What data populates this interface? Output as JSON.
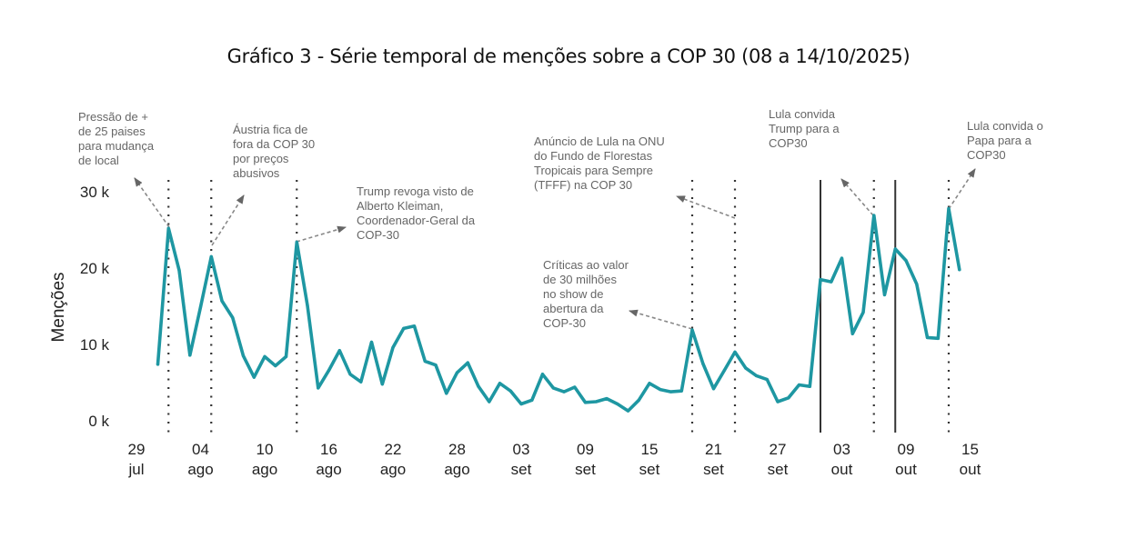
{
  "chart_data": {
    "type": "line",
    "title": "Gráfico 3 - Série temporal de menções sobre a COP 30 (08 a 14/10/2025)",
    "xlabel": "",
    "ylabel": "Menções",
    "ylim": [
      0,
      30000
    ],
    "yticks": [
      {
        "value": 0,
        "label": "0 k"
      },
      {
        "value": 10000,
        "label": "10 k"
      },
      {
        "value": 20000,
        "label": "20 k"
      },
      {
        "value": 30000,
        "label": "30 k"
      }
    ],
    "xstart_label": "29 jul",
    "xticks": [
      {
        "day": 0,
        "line1": "29",
        "line2": "jul"
      },
      {
        "day": 6,
        "line1": "04",
        "line2": "ago"
      },
      {
        "day": 12,
        "line1": "10",
        "line2": "ago"
      },
      {
        "day": 18,
        "line1": "16",
        "line2": "ago"
      },
      {
        "day": 24,
        "line1": "22",
        "line2": "ago"
      },
      {
        "day": 30,
        "line1": "28",
        "line2": "ago"
      },
      {
        "day": 36,
        "line1": "03",
        "line2": "set"
      },
      {
        "day": 42,
        "line1": "09",
        "line2": "set"
      },
      {
        "day": 48,
        "line1": "15",
        "line2": "set"
      },
      {
        "day": 54,
        "line1": "21",
        "line2": "set"
      },
      {
        "day": 60,
        "line1": "27",
        "line2": "set"
      },
      {
        "day": 66,
        "line1": "03",
        "line2": "out"
      },
      {
        "day": 72,
        "line1": "09",
        "line2": "out"
      },
      {
        "day": 78,
        "line1": "15",
        "line2": "out"
      }
    ],
    "grid": false,
    "legend": "none",
    "series": [
      {
        "name": "Menções",
        "color": "#1e97a2",
        "start_day": 2,
        "values": [
          7400,
          25200,
          19700,
          8600,
          14900,
          21500,
          15700,
          13500,
          8500,
          5700,
          8400,
          7200,
          8400,
          23400,
          15100,
          4300,
          6600,
          9200,
          6100,
          5100,
          10300,
          4800,
          9600,
          12100,
          12400,
          7800,
          7300,
          3600,
          6300,
          7600,
          4500,
          2500,
          4900,
          3900,
          2200,
          2700,
          6100,
          4300,
          3800,
          4400,
          2400,
          2500,
          2900,
          2200,
          1300,
          2700,
          4900,
          4100,
          3800,
          3900,
          11900,
          7500,
          4200,
          6600,
          9000,
          6900,
          5900,
          5400,
          2500,
          3000,
          4700,
          4500,
          18500,
          18200,
          21300,
          11400,
          14200,
          26900,
          16500,
          22500,
          21000,
          17900,
          10900,
          10800,
          27800,
          19800
        ]
      }
    ],
    "dotted_markers_days": [
      3,
      7,
      15,
      52,
      56,
      69,
      76
    ],
    "solid_markers_days": [
      64,
      71
    ],
    "annotations": [
      {
        "lines": [
          "Pressão de +",
          "de 25 paises",
          "para mudança",
          "de local"
        ],
        "day": 3
      },
      {
        "lines": [
          "Áustria fica de",
          "fora da COP 30",
          "por preços",
          "abusivos"
        ],
        "day": 7
      },
      {
        "lines": [
          "Trump revoga visto de",
          "Alberto Kleiman,",
          "Coordenador-Geral da",
          "COP-30"
        ],
        "day": 15
      },
      {
        "lines": [
          "Anúncio de Lula na ONU",
          "do Fundo de Florestas",
          "Tropicais para Sempre",
          "(TFFF) na COP 30"
        ],
        "day": 56
      },
      {
        "lines": [
          "Críticas ao valor",
          "de 30 milhões",
          "no show de",
          "abertura da",
          "COP-30"
        ],
        "day": 52
      },
      {
        "lines": [
          "Lula convida",
          "Trump para a",
          "COP30"
        ],
        "day": 69
      },
      {
        "lines": [
          "Lula convida o",
          "Papa para a",
          "COP30"
        ],
        "day": 76
      }
    ]
  }
}
